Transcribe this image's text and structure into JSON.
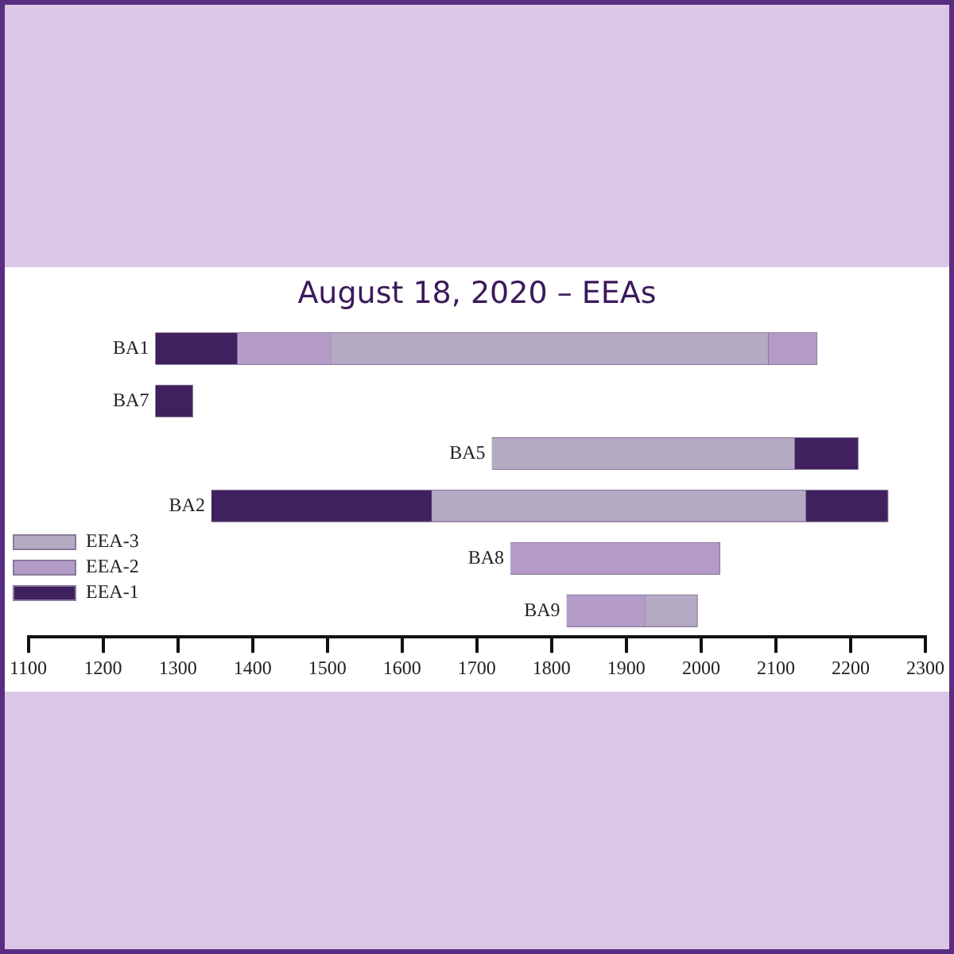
{
  "chart_data": {
    "type": "bar",
    "orientation": "horizontal",
    "title": "August 18, 2020 – EEAs",
    "categories": [
      "BA1",
      "BA7",
      "BA5",
      "BA2",
      "BA8",
      "BA9"
    ],
    "series": [
      {
        "name": "EEA-3",
        "color": "#b4aac3",
        "values": [
          585,
          null,
          405,
          500,
          null,
          70
        ],
        "base": [
          1505,
          null,
          1720,
          1640,
          null,
          1925
        ]
      },
      {
        "name": "EEA-2",
        "color": "#b49bc8",
        "values": [
          125,
          null,
          null,
          null,
          280,
          105
        ],
        "base": [
          1380,
          null,
          null,
          null,
          1745,
          1820
        ]
      },
      {
        "name": "EEA-1",
        "color": "#40205f",
        "values": [
          110,
          50,
          85,
          295,
          null,
          null
        ],
        "base": [
          1270,
          1270,
          2125,
          1345,
          null,
          null
        ]
      },
      {
        "color": "#b49bc8",
        "values": [
          65,
          null,
          null,
          null,
          null,
          null
        ],
        "base": [
          2090,
          null,
          null,
          null,
          null,
          null
        ]
      },
      {
        "color": "#40205f",
        "values": [
          null,
          null,
          null,
          110,
          null,
          null
        ],
        "base": [
          null,
          null,
          null,
          2140,
          null,
          null
        ]
      }
    ],
    "xlim": [
      1100,
      2300
    ],
    "xticks": [
      1100,
      1200,
      1300,
      1400,
      1500,
      1600,
      1700,
      1800,
      1900,
      2000,
      2100,
      2200,
      2300
    ],
    "tick_labels": "x",
    "grid": false,
    "legend": "left"
  }
}
